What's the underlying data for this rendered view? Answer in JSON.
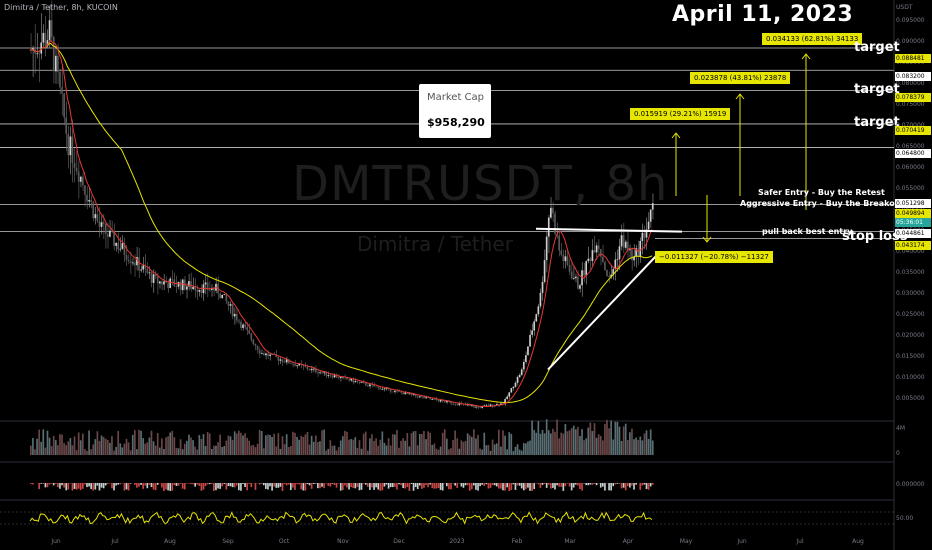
{
  "header": {
    "symbol_line": "Dimitra / Tether, 8h, KUCOIN"
  },
  "date_text": "April  11, 2023",
  "market_cap": {
    "label": "Market Cap",
    "value": "$958,290"
  },
  "watermark": {
    "ticker": "DMTRUSDT, 8h",
    "pair": "Dimitra / Tether"
  },
  "currency": "USDT",
  "price_axis": [
    "0.095000",
    "0.090000",
    "0.085000",
    "0.080000",
    "0.075000",
    "0.070000",
    "0.065000",
    "0.060000",
    "0.055000",
    "0.050000",
    "0.045000",
    "0.040000",
    "0.035000",
    "0.030000",
    "0.025000",
    "0.020000",
    "0.015000",
    "0.010000",
    "0.005000"
  ],
  "price_labels": {
    "t3": "0.088481",
    "r1": "0.083200",
    "t2": "0.078379",
    "t1": "0.070419",
    "r2": "0.064800",
    "r3": "0.051298",
    "last": "0.049894",
    "countdown": "05:36:01",
    "entry": "0.044861",
    "stop": "0.043174"
  },
  "volume_axis": {
    "top": "4M",
    "bottom": "0"
  },
  "osc_axis": {
    "macd": "0.000000",
    "rsi": "50.00"
  },
  "time_axis": [
    "Jun",
    "Jul",
    "Aug",
    "Sep",
    "Oct",
    "Nov",
    "Dec",
    "2023",
    "Feb",
    "Mar",
    "Apr",
    "May",
    "Jun",
    "Jul",
    "Aug"
  ],
  "measures": {
    "m1": "0.015919 (29.21%) 15919",
    "m2": "0.023878 (43.81%) 23878",
    "m3": "0.034133 (62.81%) 34133",
    "down": "−0.011327 (−20.78%) −11327"
  },
  "annotations": {
    "target1": "target",
    "target2": "target",
    "target3": "target",
    "safer": "Safer Entry - Buy the Retest",
    "aggressive": "Aggressive Entry - Buy the Breakout",
    "pullback": "pull back best entry",
    "stop": "stop loss"
  },
  "colors": {
    "bg": "#000000",
    "up": "#26a69a",
    "down": "#ef5350",
    "ma_fast": "#e53935",
    "ma_slow": "#e6e600",
    "label": "#e6e600"
  },
  "chart_data": {
    "type": "candlestick",
    "ylim": [
      0,
      0.098
    ],
    "resistance_levels": [
      0.0832,
      0.0648,
      0.051298,
      0.044861
    ],
    "targets": [
      0.070419,
      0.078379,
      0.088481
    ],
    "stop_loss": 0.043174,
    "last_price": 0.049894,
    "x": [
      "Jun",
      "Jul",
      "Aug",
      "Sep",
      "Oct",
      "Nov",
      "Dec",
      "2023",
      "Feb",
      "Mar",
      "Apr"
    ],
    "close_approx": [
      0.062,
      0.032,
      0.028,
      0.016,
      0.01,
      0.006,
      0.004,
      0.003,
      0.04,
      0.036,
      0.049894
    ]
  }
}
